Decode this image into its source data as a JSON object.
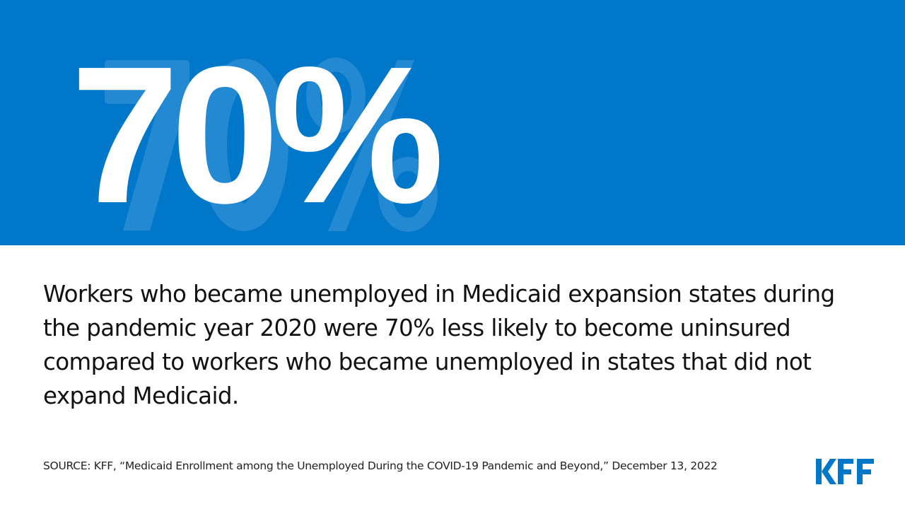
{
  "headline": {
    "value": "70%"
  },
  "statement": "Workers who became unemployed in Medicaid expansion states during the pandemic year 2020 were 70% less likely to become uninsured compared to workers who became unemployed in states that did not expand Medicaid.",
  "source": "SOURCE: KFF, “Medicaid Enrollment among the Unemployed During the COVID-19 Pandemic and Beyond,” December 13, 2022",
  "logo": {
    "text": "KFF"
  },
  "colors": {
    "brand_blue": "#0077c8",
    "watermark_blue": "#2389d3",
    "text": "#111111"
  }
}
